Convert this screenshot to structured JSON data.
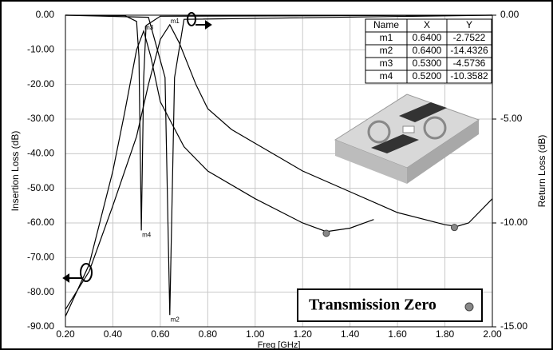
{
  "chart_data": {
    "type": "line",
    "x_label": "Freq [GHz]",
    "y_label": "Insertion Loss (dB)",
    "y2_label": "Return Loss (dB)",
    "xlim": [
      0.2,
      2.0
    ],
    "xticks": [
      {
        "value": 0.2,
        "label": "0.20"
      },
      {
        "value": 0.4,
        "label": "0.40"
      },
      {
        "value": 0.6,
        "label": "0.60"
      },
      {
        "value": 0.8,
        "label": "0.80"
      },
      {
        "value": 1.0,
        "label": "1.00"
      },
      {
        "value": 1.2,
        "label": "1.20"
      },
      {
        "value": 1.4,
        "label": "1.40"
      },
      {
        "value": 1.6,
        "label": "1.60"
      },
      {
        "value": 1.8,
        "label": "1.80"
      },
      {
        "value": 2.0,
        "label": "2.00"
      }
    ],
    "ylim": [
      -90,
      0
    ],
    "yticks": [
      {
        "value": 0,
        "label": "0.00"
      },
      {
        "value": -10,
        "label": "-10.00"
      },
      {
        "value": -20,
        "label": "-20.00"
      },
      {
        "value": -30,
        "label": "-30.00"
      },
      {
        "value": -40,
        "label": "-40.00"
      },
      {
        "value": -50,
        "label": "-50.00"
      },
      {
        "value": -60,
        "label": "-60.00"
      },
      {
        "value": -70,
        "label": "-70.00"
      },
      {
        "value": -80,
        "label": "-80.00"
      },
      {
        "value": -90,
        "label": "-90.00"
      }
    ],
    "y2lim": [
      -15,
      0
    ],
    "y2ticks": [
      {
        "value": 0,
        "label": "0.00"
      },
      {
        "value": -5,
        "label": "-5.00"
      },
      {
        "value": -10,
        "label": "-10.00"
      },
      {
        "value": -15,
        "label": "-15.00"
      }
    ],
    "grid": true,
    "series": [
      {
        "color": "#000000",
        "x": [
          0.2,
          0.3,
          0.4,
          0.45,
          0.5,
          0.53,
          0.56,
          0.6,
          0.7,
          0.8,
          1.0,
          1.2,
          1.3,
          1.4,
          1.5
        ],
        "values": [
          -87,
          -72,
          -45,
          -28,
          -10,
          -4.57,
          -12,
          -25,
          -38,
          -45,
          -53,
          -60,
          -62.5,
          -61.5,
          -59
        ]
      },
      {
        "color": "#000000",
        "x": [
          0.2,
          0.3,
          0.4,
          0.5,
          0.55,
          0.6,
          0.64,
          0.68,
          0.75,
          0.8,
          0.9,
          1.0,
          1.1,
          1.2,
          1.4,
          1.6,
          1.8,
          1.85,
          1.9,
          2.0
        ],
        "values": [
          -85,
          -74,
          -55,
          -35,
          -20,
          -7,
          -2.75,
          -8,
          -20,
          -27,
          -33,
          -37,
          -41,
          -45,
          -51,
          -57,
          -60.5,
          -61,
          -60,
          -53
        ]
      },
      {
        "color": "#000000",
        "axis": "y2",
        "x": [
          0.2,
          0.45,
          0.5,
          0.51,
          0.52,
          0.53,
          0.54,
          0.6,
          2.0
        ],
        "values": [
          0,
          -0.02,
          -0.3,
          -2,
          -10.36,
          -3,
          -0.5,
          -0.05,
          0
        ]
      },
      {
        "color": "#000000",
        "axis": "y2",
        "x": [
          0.2,
          0.55,
          0.62,
          0.64,
          0.66,
          0.7,
          2.0
        ],
        "values": [
          0,
          -0.1,
          -3,
          -14.43,
          -3,
          -0.2,
          0
        ]
      }
    ],
    "transmission_zeros": {
      "name": "Transmission Zero",
      "x": [
        1.3,
        1.84
      ],
      "values": [
        -63,
        -61.3
      ]
    },
    "marker_table_headers": [
      "Name",
      "X",
      "Y"
    ],
    "markers": [
      {
        "name": "m1",
        "x": 0.64,
        "y": -2.7522,
        "x_label": "0.6400",
        "y_label": "-2.7522"
      },
      {
        "name": "m2",
        "x": 0.64,
        "y": -14.4326,
        "axis": "y2",
        "x_label": "0.6400",
        "y_label": "-14.4326"
      },
      {
        "name": "m3",
        "x": 0.53,
        "y": -4.5736,
        "x_label": "0.5300",
        "y_label": "-4.5736"
      },
      {
        "name": "m4",
        "x": 0.52,
        "y": -10.3582,
        "axis": "y2",
        "x_label": "0.5200",
        "y_label": "-10.3582"
      }
    ]
  }
}
